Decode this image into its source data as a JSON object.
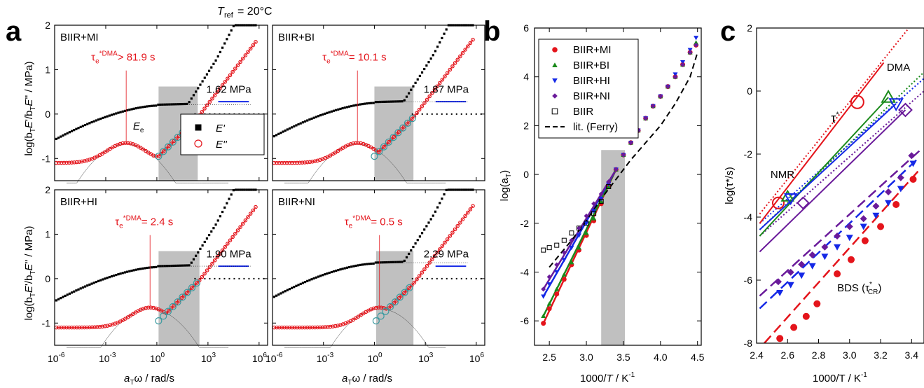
{
  "header": {
    "tref_label": "T",
    "tref_sub": "ref",
    "tref_value": "= 20°C"
  },
  "panel_letters": [
    "a",
    "b",
    "c"
  ],
  "colors": {
    "red": "#e4141b",
    "green": "#1a8a1a",
    "blue": "#1428e6",
    "purple": "#6a1a9a",
    "black": "#000000",
    "cyan": "#3a9aa0",
    "gray": "#c0c0c0"
  },
  "chart_data": [
    {
      "id": "a",
      "type": "scatter",
      "xlabel_a": "a",
      "xlabel_sub": "T",
      "xlabel_rest": "ω  /  rad/s",
      "ylabel": "log(bTE'/bTE'' / MPa)",
      "ylabel_top": "log(b",
      "ylabel_bottom": "log(b",
      "x_scale": "log",
      "xlim_exp": [
        -6,
        6.5
      ],
      "ylim": [
        -1.5,
        2
      ],
      "x_ticks": [
        "10",
        "10",
        "10",
        "10",
        "10"
      ],
      "x_tick_exps": [
        "-6",
        "-3",
        "0",
        "3",
        "6"
      ],
      "x_tick_positions_exp": [
        -6,
        -3,
        0,
        3,
        6
      ],
      "y_ticks": [
        "-1",
        "0",
        "1",
        "2"
      ],
      "y_tick_values": [
        -1,
        0,
        1,
        2
      ],
      "legend": [
        {
          "symbol": "filled-square",
          "label": "E'"
        },
        {
          "symbol": "open-circle",
          "label": "E''"
        }
      ],
      "subpanels": [
        {
          "name": "BIIR+MI",
          "tau_label": "τe*DMA",
          "tau_value": "> 81.9 s",
          "tau_log_x": -1.8,
          "plateau_label": "1.62 MPa",
          "plateau_log": 0.21,
          "ee_label": "E",
          "ee_sub": "e",
          "shade": [
            0.1,
            2.4
          ]
        },
        {
          "name": "BIIR+BI",
          "tau_label": "τe*DMA",
          "tau_value": "= 10.1 s",
          "tau_log_x": -1.0,
          "plateau_label": "1.87 MPa",
          "plateau_log": 0.27,
          "shade": [
            0.0,
            2.3
          ]
        },
        {
          "name": "BIIR+HI",
          "tau_label": "τe*DMA",
          "tau_value": "= 2.4 s",
          "tau_log_x": -0.4,
          "plateau_label": "1.90 MPa",
          "plateau_log": 0.28,
          "shade": [
            0.1,
            2.5
          ]
        },
        {
          "name": "BIIR+NI",
          "tau_label": "τe*DMA",
          "tau_value": "= 0.5 s",
          "tau_log_x": 0.3,
          "plateau_label": "2.29 MPa",
          "plateau_log": 0.36,
          "shade": [
            0.1,
            2.3
          ]
        }
      ]
    },
    {
      "id": "b",
      "type": "scatter",
      "xlabel": "1000/T  /  K",
      "xlabel_sup": "-1",
      "ylabel": "log(a",
      "ylabel_sub": "T",
      "ylabel_close": ")",
      "xlim": [
        2.3,
        4.55
      ],
      "ylim": [
        -7,
        6
      ],
      "x_ticks": [
        2.5,
        3.0,
        3.5,
        4.0,
        4.5
      ],
      "y_ticks": [
        -6,
        -4,
        -2,
        0,
        2,
        4,
        6
      ],
      "shade": [
        3.2,
        3.52
      ],
      "series": [
        {
          "name": "BIIR+MI",
          "symbol": "circle",
          "color": "#e4141b",
          "x": [
            2.42,
            2.5,
            2.6,
            2.7,
            2.8,
            2.9,
            3.0,
            3.1,
            3.2,
            3.3,
            3.4,
            3.5,
            3.6,
            3.7,
            3.8,
            3.9,
            4.0,
            4.1,
            4.2,
            4.3,
            4.4,
            4.48
          ],
          "y": [
            -6.1,
            -5.5,
            -4.9,
            -4.3,
            -3.7,
            -3.1,
            -2.5,
            -1.9,
            -1.2,
            -0.5,
            0.2,
            0.8,
            1.3,
            1.8,
            2.3,
            2.8,
            3.2,
            3.6,
            4.0,
            4.5,
            5.0,
            5.3
          ]
        },
        {
          "name": "BIIR+BI",
          "symbol": "triangle-up",
          "color": "#1a8a1a",
          "x": [
            2.42,
            2.5,
            2.6,
            2.7,
            2.8,
            2.9,
            3.0,
            3.1,
            3.2,
            3.3,
            3.4,
            3.5,
            3.6,
            3.7,
            3.8,
            3.9,
            4.0,
            4.1,
            4.2,
            4.3,
            4.4,
            4.48
          ],
          "y": [
            -5.8,
            -5.3,
            -4.7,
            -4.1,
            -3.6,
            -3.0,
            -2.4,
            -1.8,
            -1.1,
            -0.5,
            0.2,
            0.8,
            1.3,
            1.8,
            2.3,
            2.8,
            3.2,
            3.6,
            4.0,
            4.5,
            5.0,
            5.4
          ]
        },
        {
          "name": "BIIR+HI",
          "symbol": "triangle-down",
          "color": "#1428e6",
          "x": [
            2.42,
            2.5,
            2.6,
            2.7,
            2.8,
            2.9,
            3.0,
            3.1,
            3.2,
            3.3,
            3.4,
            3.5,
            3.6,
            3.7,
            3.8,
            3.9,
            4.0,
            4.1,
            4.2,
            4.3,
            4.4,
            4.48
          ],
          "y": [
            -5.0,
            -4.5,
            -4.0,
            -3.5,
            -3.0,
            -2.5,
            -2.0,
            -1.5,
            -1.0,
            -0.4,
            0.2,
            0.8,
            1.3,
            1.8,
            2.3,
            2.8,
            3.2,
            3.6,
            4.1,
            4.6,
            5.1,
            5.6
          ]
        },
        {
          "name": "BIIR+NI",
          "symbol": "diamond",
          "color": "#6a1a9a",
          "x": [
            2.42,
            2.5,
            2.6,
            2.7,
            2.8,
            2.9,
            3.0,
            3.1,
            3.2,
            3.3,
            3.4,
            3.5,
            3.6,
            3.7,
            3.8,
            3.9,
            4.0,
            4.1,
            4.2,
            4.3,
            4.4,
            4.48
          ],
          "y": [
            -4.7,
            -4.2,
            -3.7,
            -3.2,
            -2.7,
            -2.2,
            -1.7,
            -1.2,
            -0.8,
            -0.3,
            0.2,
            0.8,
            1.3,
            1.8,
            2.3,
            2.8,
            3.2,
            3.6,
            4.0,
            4.5,
            5.0,
            5.3
          ]
        },
        {
          "name": "BIIR",
          "symbol": "open-square",
          "color": "#000000",
          "x": [
            2.42,
            2.5,
            2.6,
            2.7,
            2.8,
            2.9,
            3.0,
            3.1,
            3.2,
            3.3
          ],
          "y": [
            -3.1,
            -3.0,
            -2.9,
            -2.7,
            -2.4,
            -2.2,
            -2.0,
            -1.6,
            -1.1,
            -0.5
          ]
        }
      ],
      "reference": {
        "name": "lit. (Ferry)",
        "x": [
          2.5,
          2.8,
          3.0,
          3.2,
          3.4,
          3.6,
          3.8,
          4.0,
          4.2,
          4.4,
          4.5
        ],
        "y": [
          -3.8,
          -2.7,
          -1.9,
          -1.0,
          -0.2,
          0.6,
          1.3,
          2.0,
          2.9,
          4.0,
          5.0
        ]
      }
    },
    {
      "id": "c",
      "type": "line",
      "xlabel": "1000/T / K",
      "xlabel_sup": "-1",
      "ylabel": "log(τ*/s)",
      "xlim": [
        2.4,
        3.48
      ],
      "ylim": [
        -8,
        2
      ],
      "x_ticks": [
        2.4,
        2.6,
        2.8,
        3.0,
        3.2,
        3.4
      ],
      "y_ticks": [
        -8,
        -6,
        -4,
        -2,
        0,
        2
      ],
      "labels": {
        "dma": "DMA",
        "nmr": "NMR",
        "tau_star": "τ",
        "tau_star_sup": "*",
        "bds": "BDS (τ",
        "bds_sub": "CR",
        "bds_sup": "*",
        "bds_close": ")"
      },
      "solid_lines": [
        {
          "color": "#e4141b",
          "x": [
            2.42,
            3.22
          ],
          "y": [
            -4.2,
            0.9
          ]
        },
        {
          "color": "#1a8a1a",
          "x": [
            2.42,
            3.25
          ],
          "y": [
            -4.6,
            -0.2
          ]
        },
        {
          "color": "#1428e6",
          "x": [
            2.42,
            3.3
          ],
          "y": [
            -4.4,
            -0.4
          ]
        },
        {
          "color": "#6a1a9a",
          "x": [
            2.42,
            3.36
          ],
          "y": [
            -5.1,
            -0.6
          ]
        }
      ],
      "dotted_lines": [
        {
          "color": "#e4141b",
          "x": [
            2.42,
            3.48
          ],
          "y": [
            -3.9,
            2.6
          ]
        },
        {
          "color": "#1a8a1a",
          "x": [
            2.42,
            3.48
          ],
          "y": [
            -4.4,
            0.6
          ]
        },
        {
          "color": "#1428e6",
          "x": [
            2.42,
            3.48
          ],
          "y": [
            -4.2,
            0.4
          ]
        },
        {
          "color": "#6a1a9a",
          "x": [
            2.42,
            3.48
          ],
          "y": [
            -4.6,
            0.0
          ]
        }
      ],
      "dma_markers": [
        {
          "color": "#e4141b",
          "symbol": "circle",
          "x": 3.05,
          "y": -0.35
        },
        {
          "color": "#1a8a1a",
          "symbol": "triangle-up",
          "x": 3.25,
          "y": -0.2
        },
        {
          "color": "#1428e6",
          "symbol": "triangle-down",
          "x": 3.3,
          "y": -0.4
        },
        {
          "color": "#6a1a9a",
          "symbol": "diamond",
          "x": 3.36,
          "y": -0.6
        }
      ],
      "nmr_markers": [
        {
          "color": "#e4141b",
          "symbol": "circle",
          "x": 2.54,
          "y": -3.55
        },
        {
          "color": "#1a8a1a",
          "symbol": "triangle-up",
          "x": 2.6,
          "y": -3.35
        },
        {
          "color": "#1428e6",
          "symbol": "triangle-down",
          "x": 2.62,
          "y": -3.4
        },
        {
          "color": "#6a1a9a",
          "symbol": "diamond",
          "x": 2.7,
          "y": -3.55
        }
      ],
      "bds_series": [
        {
          "color": "#6a1a9a",
          "symbol": "diamond",
          "x": [
            2.54,
            2.62,
            2.69,
            2.76,
            2.84,
            2.92,
            3.0,
            3.09,
            3.17,
            3.25,
            3.33,
            3.4
          ],
          "y": [
            -6.05,
            -5.75,
            -5.5,
            -5.2,
            -4.95,
            -4.6,
            -4.3,
            -4.05,
            -3.65,
            -3.2,
            -2.75,
            -2.05
          ]
        },
        {
          "color": "#1428e6",
          "symbol": "triangle-down",
          "x": [
            2.55,
            2.62,
            2.69,
            2.76,
            2.84,
            2.92,
            3.0,
            3.09,
            3.17,
            3.25,
            3.33,
            3.41
          ],
          "y": [
            -6.4,
            -6.15,
            -5.85,
            -5.55,
            -5.25,
            -4.95,
            -4.65,
            -4.3,
            -3.95,
            -3.55,
            -3.1,
            -2.3
          ]
        },
        {
          "color": "#e4141b",
          "symbol": "filled-circle",
          "x": [
            2.55,
            2.64,
            2.72,
            2.79,
            2.92,
            3.01,
            3.1,
            3.2,
            3.3,
            3.41
          ],
          "y": [
            -7.85,
            -7.5,
            -7.15,
            -6.75,
            -5.8,
            -5.35,
            -4.75,
            -4.3,
            -3.6,
            -2.8
          ]
        }
      ],
      "bds_fit_lines": [
        {
          "color": "#6a1a9a",
          "x": [
            2.42,
            3.45
          ],
          "y": [
            -6.5,
            -1.9
          ]
        },
        {
          "color": "#1428e6",
          "x": [
            2.42,
            3.45
          ],
          "y": [
            -6.9,
            -2.1
          ]
        },
        {
          "color": "#e4141b",
          "x": [
            2.45,
            3.45
          ],
          "y": [
            -8.0,
            -2.5
          ]
        }
      ]
    }
  ]
}
